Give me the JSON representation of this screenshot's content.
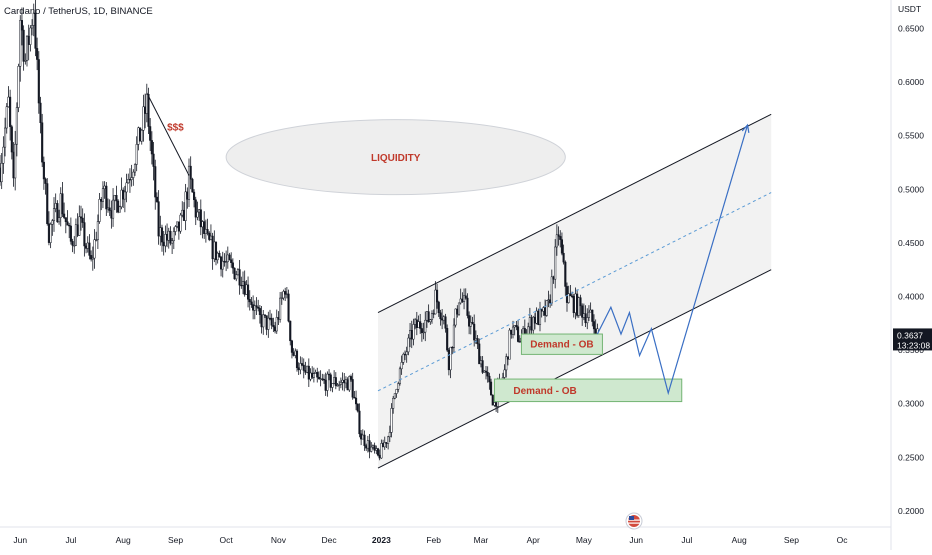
{
  "chart_data": {
    "type": "candlestick",
    "symbol_title": "Cardano / TetherUS, 1D, BINANCE",
    "currency": "USDT",
    "y_axis": {
      "ticks": [
        "0.6500",
        "0.6000",
        "0.5500",
        "0.5000",
        "0.4500",
        "0.4000",
        "0.3500",
        "0.3000",
        "0.2500",
        "0.2000"
      ],
      "ylim": [
        0.185,
        0.6766
      ]
    },
    "x_axis": {
      "ticks": [
        "Jun",
        "Jul",
        "Aug",
        "Sep",
        "Oct",
        "Nov",
        "Dec",
        "2023",
        "Feb",
        "Mar",
        "Apr",
        "May",
        "Jun",
        "Jul",
        "Aug",
        "Sep",
        "Oc"
      ],
      "bold_ticks": [
        "2023"
      ],
      "range": [
        "2022-05-20",
        "2023-10-30"
      ]
    },
    "last_price": {
      "value": "0.3637",
      "countdown": "13:23:08"
    },
    "price_path": [
      [
        "2022-05-20",
        0.52
      ],
      [
        "2022-05-25",
        0.58
      ],
      [
        "2022-05-28",
        0.5
      ],
      [
        "2022-06-01",
        0.66
      ],
      [
        "2022-06-04",
        0.62
      ],
      [
        "2022-06-09",
        0.67
      ],
      [
        "2022-06-13",
        0.55
      ],
      [
        "2022-06-18",
        0.46
      ],
      [
        "2022-06-25",
        0.49
      ],
      [
        "2022-07-01",
        0.45
      ],
      [
        "2022-07-06",
        0.47
      ],
      [
        "2022-07-13",
        0.43
      ],
      [
        "2022-07-20",
        0.5
      ],
      [
        "2022-07-26",
        0.48
      ],
      [
        "2022-08-01",
        0.5
      ],
      [
        "2022-08-06",
        0.52
      ],
      [
        "2022-08-11",
        0.55
      ],
      [
        "2022-08-15",
        0.58
      ],
      [
        "2022-08-22",
        0.46
      ],
      [
        "2022-08-30",
        0.45
      ],
      [
        "2022-09-05",
        0.47
      ],
      [
        "2022-09-09",
        0.51
      ],
      [
        "2022-09-13",
        0.48
      ],
      [
        "2022-09-20",
        0.45
      ],
      [
        "2022-10-01",
        0.43
      ],
      [
        "2022-10-10",
        0.42
      ],
      [
        "2022-10-20",
        0.38
      ],
      [
        "2022-10-30",
        0.37
      ],
      [
        "2022-11-05",
        0.41
      ],
      [
        "2022-11-09",
        0.35
      ],
      [
        "2022-11-15",
        0.33
      ],
      [
        "2022-11-25",
        0.32
      ],
      [
        "2022-12-05",
        0.32
      ],
      [
        "2022-12-14",
        0.32
      ],
      [
        "2022-12-20",
        0.27
      ],
      [
        "2022-12-30",
        0.25
      ],
      [
        "2023-01-05",
        0.27
      ],
      [
        "2023-01-10",
        0.32
      ],
      [
        "2023-01-20",
        0.37
      ],
      [
        "2023-01-30",
        0.38
      ],
      [
        "2023-02-02",
        0.4
      ],
      [
        "2023-02-07",
        0.38
      ],
      [
        "2023-02-10",
        0.34
      ],
      [
        "2023-02-16",
        0.4
      ],
      [
        "2023-02-20",
        0.39
      ],
      [
        "2023-03-01",
        0.34
      ],
      [
        "2023-03-09",
        0.3
      ],
      [
        "2023-03-15",
        0.33
      ],
      [
        "2023-03-19",
        0.37
      ],
      [
        "2023-03-25",
        0.36
      ],
      [
        "2023-04-01",
        0.38
      ],
      [
        "2023-04-06",
        0.38
      ],
      [
        "2023-04-10",
        0.39
      ],
      [
        "2023-04-16",
        0.46
      ],
      [
        "2023-04-21",
        0.4
      ],
      [
        "2023-04-28",
        0.39
      ],
      [
        "2023-05-05",
        0.38
      ],
      [
        "2023-05-09",
        0.365
      ]
    ],
    "annotations": {
      "liquidity_label": "LIQUIDITY",
      "dollar_label": "$$$",
      "demand_upper_label": "Demand - OB",
      "demand_lower_label": "Demand - OB",
      "projection": [
        [
          "2023-05-09",
          0.365
        ],
        [
          "2023-05-17",
          0.39
        ],
        [
          "2023-05-23",
          0.365
        ],
        [
          "2023-05-28",
          0.385
        ],
        [
          "2023-06-03",
          0.345
        ],
        [
          "2023-06-10",
          0.37
        ],
        [
          "2023-06-20",
          0.31
        ],
        [
          "2023-08-06",
          0.56
        ]
      ],
      "channel_lower": [
        [
          "2022-12-30",
          0.24
        ],
        [
          "2023-08-20",
          0.425
        ]
      ],
      "channel_upper": [
        [
          "2022-12-30",
          0.385
        ],
        [
          "2023-08-20",
          0.57
        ]
      ],
      "channel_mid": [
        [
          "2022-12-30",
          0.312
        ],
        [
          "2023-08-20",
          0.497
        ]
      ],
      "trendline": [
        [
          "2022-08-15",
          0.59
        ],
        [
          "2022-09-09",
          0.513
        ]
      ],
      "demand_upper_zone": {
        "from": "2023-03-25",
        "to": "2023-05-12",
        "low": 0.346,
        "high": 0.365
      },
      "demand_lower_zone": {
        "from": "2023-03-09",
        "to": "2023-06-28",
        "low": 0.302,
        "high": 0.323
      },
      "liquidity_zone": {
        "from": "2022-10-01",
        "to": "2023-04-20",
        "low": 0.495,
        "high": 0.565
      }
    },
    "colors": {
      "candle": "#131722",
      "channel_fill": "#f2f2f2",
      "channel_line": "#131722",
      "channel_mid": "#5b9bd5",
      "projection": "#3a6fc4",
      "demand_fill": "#cfe8cf",
      "demand_stroke": "#74b474",
      "demand_text": "#c0392b",
      "annotation_red": "#c0392b",
      "liquidity_fill": "#eeeeee",
      "last_price_badge": "#131722"
    }
  }
}
